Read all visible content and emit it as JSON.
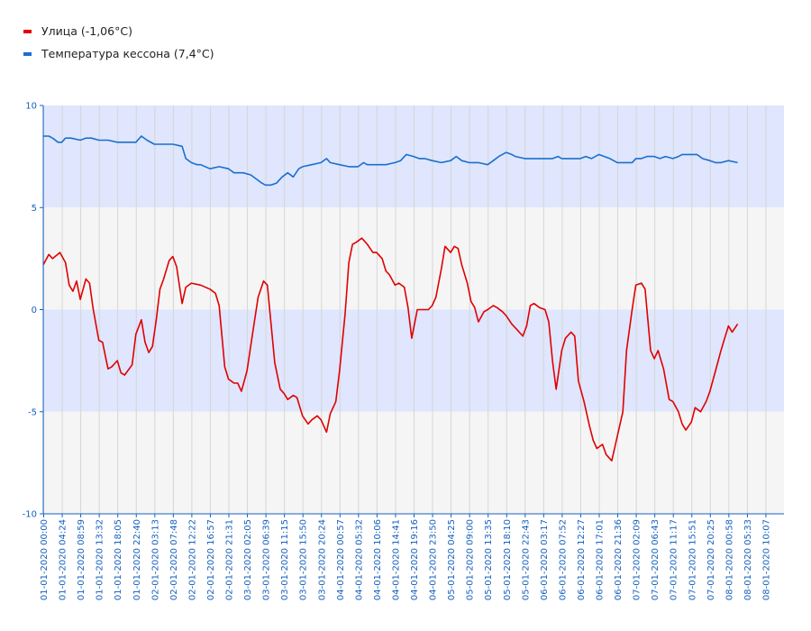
{
  "chart_data": {
    "type": "line",
    "title": "",
    "xlabel": "",
    "ylabel": "",
    "ylim": [
      -10,
      10
    ],
    "yticks": [
      10,
      5,
      0,
      -5,
      -10
    ],
    "grid": true,
    "legend_position": "top-left",
    "band_colors": {
      "blue": "#dfe6fd",
      "gray": "#f5f5f5"
    },
    "x_tick_labels": [
      "01-01-2020 00:00",
      "01-01-2020 04:24",
      "01-01-2020 08:59",
      "01-01-2020 13:32",
      "01-01-2020 18:05",
      "01-01-2020 22:40",
      "02-01-2020 03:13",
      "02-01-2020 07:48",
      "02-01-2020 12:22",
      "02-01-2020 16:57",
      "02-01-2020 21:31",
      "03-01-2020 02:05",
      "03-01-2020 06:39",
      "03-01-2020 11:15",
      "03-01-2020 15:50",
      "03-01-2020 20:24",
      "04-01-2020 00:57",
      "04-01-2020 05:32",
      "04-01-2020 10:06",
      "04-01-2020 14:41",
      "04-01-2020 19:16",
      "04-01-2020 23:50",
      "05-01-2020 04:25",
      "05-01-2020 09:00",
      "05-01-2020 13:35",
      "05-01-2020 18:10",
      "05-01-2020 22:43",
      "06-01-2020 03:17",
      "06-01-2020 07:52",
      "06-01-2020 12:27",
      "06-01-2020 17:01",
      "06-01-2020 21:36",
      "07-01-2020 02:09",
      "07-01-2020 06:43",
      "07-01-2020 11:17",
      "07-01-2020 15:51",
      "07-01-2020 20:25",
      "08-01-2020 00:58",
      "08-01-2020 05:33",
      "08-01-2020 10:07"
    ],
    "series": [
      {
        "name": "Улица (-1,06°C)",
        "color": "#e00000",
        "points": [
          [
            0,
            2.2
          ],
          [
            0.3,
            2.7
          ],
          [
            0.5,
            2.5
          ],
          [
            0.9,
            2.8
          ],
          [
            1.2,
            2.3
          ],
          [
            1.4,
            1.2
          ],
          [
            1.6,
            0.9
          ],
          [
            1.8,
            1.4
          ],
          [
            2.0,
            0.5
          ],
          [
            2.3,
            1.5
          ],
          [
            2.5,
            1.3
          ],
          [
            2.7,
            0
          ],
          [
            3.0,
            -1.5
          ],
          [
            3.2,
            -1.6
          ],
          [
            3.5,
            -2.9
          ],
          [
            3.7,
            -2.8
          ],
          [
            4.0,
            -2.5
          ],
          [
            4.2,
            -3.1
          ],
          [
            4.4,
            -3.2
          ],
          [
            4.8,
            -2.7
          ],
          [
            5.0,
            -1.2
          ],
          [
            5.3,
            -0.5
          ],
          [
            5.5,
            -1.6
          ],
          [
            5.7,
            -2.1
          ],
          [
            5.9,
            -1.8
          ],
          [
            6.1,
            -0.5
          ],
          [
            6.3,
            1.0
          ],
          [
            6.5,
            1.5
          ],
          [
            6.8,
            2.4
          ],
          [
            7.0,
            2.6
          ],
          [
            7.2,
            2.1
          ],
          [
            7.5,
            0.3
          ],
          [
            7.7,
            1.1
          ],
          [
            8.0,
            1.3
          ],
          [
            8.5,
            1.2
          ],
          [
            9.0,
            1.0
          ],
          [
            9.3,
            0.8
          ],
          [
            9.5,
            0.2
          ],
          [
            9.8,
            -2.8
          ],
          [
            10.0,
            -3.4
          ],
          [
            10.3,
            -3.6
          ],
          [
            10.5,
            -3.6
          ],
          [
            10.7,
            -4.0
          ],
          [
            11.0,
            -3.0
          ],
          [
            11.3,
            -1.2
          ],
          [
            11.6,
            0.6
          ],
          [
            11.9,
            1.4
          ],
          [
            12.1,
            1.2
          ],
          [
            12.5,
            -2.6
          ],
          [
            12.8,
            -3.9
          ],
          [
            13.0,
            -4.1
          ],
          [
            13.2,
            -4.4
          ],
          [
            13.5,
            -4.2
          ],
          [
            13.7,
            -4.3
          ],
          [
            14.0,
            -5.2
          ],
          [
            14.3,
            -5.6
          ],
          [
            14.5,
            -5.4
          ],
          [
            14.8,
            -5.2
          ],
          [
            15.0,
            -5.4
          ],
          [
            15.3,
            -6.0
          ],
          [
            15.5,
            -5.1
          ],
          [
            15.8,
            -4.5
          ],
          [
            16.0,
            -3.0
          ],
          [
            16.3,
            -0.2
          ],
          [
            16.5,
            2.3
          ],
          [
            16.7,
            3.2
          ],
          [
            16.9,
            3.3
          ],
          [
            17.2,
            3.5
          ],
          [
            17.5,
            3.2
          ],
          [
            17.8,
            2.8
          ],
          [
            18.0,
            2.8
          ],
          [
            18.3,
            2.5
          ],
          [
            18.5,
            1.9
          ],
          [
            18.7,
            1.7
          ],
          [
            19.0,
            1.2
          ],
          [
            19.2,
            1.3
          ],
          [
            19.5,
            1.1
          ],
          [
            19.7,
            0.1
          ],
          [
            19.9,
            -1.4
          ],
          [
            20.2,
            0.0
          ],
          [
            20.5,
            0.0
          ],
          [
            20.8,
            0.0
          ],
          [
            21.0,
            0.2
          ],
          [
            21.2,
            0.6
          ],
          [
            21.5,
            2.0
          ],
          [
            21.7,
            3.1
          ],
          [
            22.0,
            2.8
          ],
          [
            22.2,
            3.1
          ],
          [
            22.4,
            3.0
          ],
          [
            22.6,
            2.2
          ],
          [
            22.9,
            1.3
          ],
          [
            23.1,
            0.4
          ],
          [
            23.3,
            0.1
          ],
          [
            23.5,
            -0.6
          ],
          [
            23.8,
            -0.1
          ],
          [
            24.0,
            0.0
          ],
          [
            24.3,
            0.2
          ],
          [
            24.5,
            0.1
          ],
          [
            24.8,
            -0.1
          ],
          [
            25.0,
            -0.3
          ],
          [
            25.3,
            -0.7
          ],
          [
            25.6,
            -1.0
          ],
          [
            25.9,
            -1.3
          ],
          [
            26.1,
            -0.8
          ],
          [
            26.3,
            0.2
          ],
          [
            26.5,
            0.3
          ],
          [
            26.8,
            0.1
          ],
          [
            27.1,
            0.0
          ],
          [
            27.3,
            -0.6
          ],
          [
            27.5,
            -2.5
          ],
          [
            27.7,
            -3.9
          ],
          [
            28.0,
            -2.0
          ],
          [
            28.2,
            -1.4
          ],
          [
            28.5,
            -1.1
          ],
          [
            28.7,
            -1.3
          ],
          [
            28.9,
            -3.5
          ],
          [
            29.2,
            -4.5
          ],
          [
            29.5,
            -5.7
          ],
          [
            29.7,
            -6.4
          ],
          [
            29.9,
            -6.8
          ],
          [
            30.2,
            -6.6
          ],
          [
            30.4,
            -7.1
          ],
          [
            30.7,
            -7.4
          ],
          [
            30.9,
            -6.6
          ],
          [
            31.3,
            -5.0
          ],
          [
            31.5,
            -2.0
          ],
          [
            31.8,
            0.0
          ],
          [
            32.0,
            1.2
          ],
          [
            32.3,
            1.3
          ],
          [
            32.5,
            1.0
          ],
          [
            32.8,
            -2.0
          ],
          [
            33.0,
            -2.4
          ],
          [
            33.2,
            -2.0
          ],
          [
            33.5,
            -2.9
          ],
          [
            33.8,
            -4.4
          ],
          [
            34.0,
            -4.5
          ],
          [
            34.3,
            -5.0
          ],
          [
            34.5,
            -5.6
          ],
          [
            34.7,
            -5.9
          ],
          [
            35.0,
            -5.5
          ],
          [
            35.2,
            -4.8
          ],
          [
            35.5,
            -5.0
          ],
          [
            35.8,
            -4.5
          ],
          [
            36.0,
            -4.0
          ],
          [
            36.3,
            -3.0
          ],
          [
            36.6,
            -2.0
          ],
          [
            36.8,
            -1.4
          ],
          [
            37.0,
            -0.8
          ],
          [
            37.2,
            -1.1
          ],
          [
            37.5,
            -0.7
          ]
        ]
      },
      {
        "name": "Температура кессона (7,4°C)",
        "color": "#1a6fd0",
        "points": [
          [
            0,
            8.5
          ],
          [
            0.3,
            8.5
          ],
          [
            0.5,
            8.4
          ],
          [
            0.8,
            8.2
          ],
          [
            1.0,
            8.2
          ],
          [
            1.2,
            8.4
          ],
          [
            1.5,
            8.4
          ],
          [
            2.0,
            8.3
          ],
          [
            2.3,
            8.4
          ],
          [
            2.6,
            8.4
          ],
          [
            3.0,
            8.3
          ],
          [
            3.5,
            8.3
          ],
          [
            4.0,
            8.2
          ],
          [
            4.5,
            8.2
          ],
          [
            5.0,
            8.2
          ],
          [
            5.3,
            8.5
          ],
          [
            5.6,
            8.3
          ],
          [
            6.0,
            8.1
          ],
          [
            6.5,
            8.1
          ],
          [
            7.0,
            8.1
          ],
          [
            7.5,
            8.0
          ],
          [
            7.7,
            7.4
          ],
          [
            8.0,
            7.2
          ],
          [
            8.3,
            7.1
          ],
          [
            8.5,
            7.1
          ],
          [
            9.0,
            6.9
          ],
          [
            9.5,
            7.0
          ],
          [
            10.0,
            6.9
          ],
          [
            10.3,
            6.7
          ],
          [
            10.8,
            6.7
          ],
          [
            11.2,
            6.6
          ],
          [
            11.5,
            6.4
          ],
          [
            11.8,
            6.2
          ],
          [
            12.0,
            6.1
          ],
          [
            12.3,
            6.1
          ],
          [
            12.6,
            6.2
          ],
          [
            12.9,
            6.5
          ],
          [
            13.2,
            6.7
          ],
          [
            13.5,
            6.5
          ],
          [
            13.8,
            6.9
          ],
          [
            14.0,
            7.0
          ],
          [
            14.5,
            7.1
          ],
          [
            15.0,
            7.2
          ],
          [
            15.3,
            7.4
          ],
          [
            15.5,
            7.2
          ],
          [
            16.0,
            7.1
          ],
          [
            16.5,
            7.0
          ],
          [
            17.0,
            7.0
          ],
          [
            17.3,
            7.2
          ],
          [
            17.5,
            7.1
          ],
          [
            18.0,
            7.1
          ],
          [
            18.5,
            7.1
          ],
          [
            19.0,
            7.2
          ],
          [
            19.3,
            7.3
          ],
          [
            19.6,
            7.6
          ],
          [
            20.0,
            7.5
          ],
          [
            20.3,
            7.4
          ],
          [
            20.6,
            7.4
          ],
          [
            21.0,
            7.3
          ],
          [
            21.5,
            7.2
          ],
          [
            22.0,
            7.3
          ],
          [
            22.3,
            7.5
          ],
          [
            22.6,
            7.3
          ],
          [
            23.0,
            7.2
          ],
          [
            23.5,
            7.2
          ],
          [
            24.0,
            7.1
          ],
          [
            24.3,
            7.3
          ],
          [
            24.6,
            7.5
          ],
          [
            25.0,
            7.7
          ],
          [
            25.3,
            7.6
          ],
          [
            25.5,
            7.5
          ],
          [
            26.0,
            7.4
          ],
          [
            26.5,
            7.4
          ],
          [
            27.0,
            7.4
          ],
          [
            27.5,
            7.4
          ],
          [
            27.8,
            7.5
          ],
          [
            28.0,
            7.4
          ],
          [
            28.5,
            7.4
          ],
          [
            29.0,
            7.4
          ],
          [
            29.3,
            7.5
          ],
          [
            29.6,
            7.4
          ],
          [
            30.0,
            7.6
          ],
          [
            30.3,
            7.5
          ],
          [
            30.6,
            7.4
          ],
          [
            31.0,
            7.2
          ],
          [
            31.2,
            7.2
          ],
          [
            31.5,
            7.2
          ],
          [
            31.8,
            7.2
          ],
          [
            32.0,
            7.4
          ],
          [
            32.3,
            7.4
          ],
          [
            32.6,
            7.5
          ],
          [
            33.0,
            7.5
          ],
          [
            33.3,
            7.4
          ],
          [
            33.6,
            7.5
          ],
          [
            34.0,
            7.4
          ],
          [
            34.3,
            7.5
          ],
          [
            34.5,
            7.6
          ],
          [
            35.0,
            7.6
          ],
          [
            35.3,
            7.6
          ],
          [
            35.6,
            7.4
          ],
          [
            36.0,
            7.3
          ],
          [
            36.3,
            7.2
          ],
          [
            36.6,
            7.2
          ],
          [
            37.0,
            7.3
          ],
          [
            37.5,
            7.2
          ]
        ]
      }
    ]
  }
}
